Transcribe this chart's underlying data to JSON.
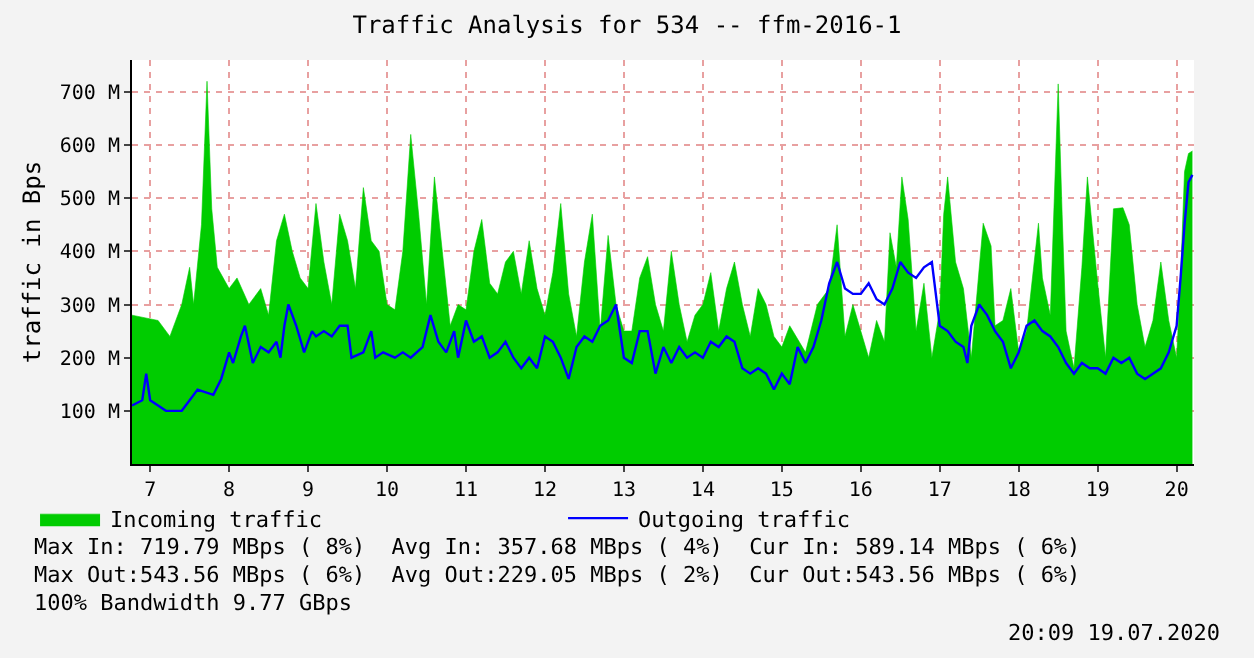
{
  "chart_data": {
    "type": "area",
    "title": "Traffic Analysis for 534 -- ffm-2016-1",
    "ylabel": "traffic in Bps",
    "xlim": [
      6.77,
      20.22
    ],
    "xticks": [
      7,
      8,
      9,
      10,
      11,
      12,
      13,
      14,
      15,
      16,
      17,
      18,
      19,
      20
    ],
    "ylim": [
      0,
      760
    ],
    "yticks": [
      {
        "value": 100,
        "label": "100 M"
      },
      {
        "value": 200,
        "label": "200 M"
      },
      {
        "value": 300,
        "label": "300 M"
      },
      {
        "value": 400,
        "label": "400 M"
      },
      {
        "value": 500,
        "label": "500 M"
      },
      {
        "value": 600,
        "label": "600 M"
      },
      {
        "value": 700,
        "label": "700 M"
      }
    ],
    "grid": true,
    "legend": "bottom left",
    "series": [
      {
        "name": "Incoming traffic",
        "color": "#00cc00",
        "x": [
          6.77,
          7.1,
          7.25,
          7.4,
          7.5,
          7.55,
          7.65,
          7.72,
          7.78,
          7.85,
          8.0,
          8.1,
          8.25,
          8.4,
          8.5,
          8.6,
          8.7,
          8.8,
          8.9,
          9.0,
          9.1,
          9.2,
          9.3,
          9.4,
          9.5,
          9.6,
          9.7,
          9.8,
          9.9,
          10.0,
          10.1,
          10.2,
          10.3,
          10.4,
          10.5,
          10.6,
          10.7,
          10.8,
          10.9,
          11.0,
          11.1,
          11.2,
          11.3,
          11.4,
          11.5,
          11.6,
          11.7,
          11.8,
          11.9,
          12.0,
          12.1,
          12.2,
          12.3,
          12.4,
          12.5,
          12.6,
          12.7,
          12.8,
          12.9,
          13.0,
          13.1,
          13.2,
          13.3,
          13.4,
          13.5,
          13.6,
          13.7,
          13.8,
          13.9,
          14.0,
          14.1,
          14.2,
          14.3,
          14.4,
          14.5,
          14.6,
          14.7,
          14.8,
          14.9,
          15.0,
          15.1,
          15.3,
          15.45,
          15.6,
          15.7,
          15.8,
          15.9,
          16.0,
          16.1,
          16.2,
          16.3,
          16.37,
          16.45,
          16.52,
          16.6,
          16.7,
          16.8,
          16.9,
          17.0,
          17.05,
          17.1,
          17.2,
          17.3,
          17.4,
          17.55,
          17.65,
          17.7,
          17.8,
          17.9,
          18.0,
          18.1,
          18.25,
          18.3,
          18.4,
          18.5,
          18.55,
          18.6,
          18.7,
          18.8,
          18.87,
          19.0,
          19.1,
          19.2,
          19.32,
          19.4,
          19.5,
          19.6,
          19.7,
          19.8,
          19.9,
          20.0,
          20.05,
          20.1,
          20.15,
          20.2
        ],
        "values": [
          280,
          270,
          240,
          300,
          370,
          300,
          450,
          720,
          480,
          370,
          330,
          350,
          300,
          330,
          280,
          420,
          470,
          400,
          350,
          330,
          490,
          380,
          300,
          470,
          420,
          330,
          520,
          420,
          400,
          300,
          290,
          400,
          620,
          470,
          300,
          540,
          400,
          260,
          300,
          290,
          400,
          460,
          340,
          320,
          380,
          400,
          320,
          420,
          330,
          280,
          360,
          490,
          320,
          240,
          380,
          470,
          250,
          430,
          300,
          250,
          250,
          350,
          390,
          300,
          250,
          400,
          300,
          230,
          280,
          300,
          360,
          250,
          330,
          380,
          300,
          240,
          330,
          300,
          240,
          220,
          260,
          210,
          300,
          330,
          450,
          240,
          300,
          250,
          200,
          270,
          230,
          435,
          370,
          540,
          460,
          250,
          340,
          200,
          290,
          470,
          540,
          380,
          330,
          200,
          453,
          410,
          260,
          270,
          330,
          210,
          250,
          453,
          350,
          280,
          715,
          470,
          250,
          180,
          370,
          540,
          340,
          200,
          480,
          482,
          450,
          300,
          220,
          270,
          380,
          270,
          200,
          350,
          550,
          584,
          589
        ]
      },
      {
        "name": "Outgoing traffic",
        "type": "line",
        "color": "#0000ff",
        "x": [
          6.77,
          6.9,
          6.95,
          7.0,
          7.1,
          7.2,
          7.4,
          7.5,
          7.6,
          7.8,
          7.9,
          8.0,
          8.05,
          8.15,
          8.2,
          8.3,
          8.4,
          8.5,
          8.6,
          8.65,
          8.7,
          8.75,
          8.85,
          8.95,
          9.05,
          9.1,
          9.2,
          9.3,
          9.4,
          9.5,
          9.55,
          9.7,
          9.8,
          9.85,
          9.95,
          10.1,
          10.2,
          10.3,
          10.45,
          10.55,
          10.65,
          10.75,
          10.85,
          10.9,
          11.0,
          11.1,
          11.2,
          11.3,
          11.4,
          11.5,
          11.6,
          11.7,
          11.8,
          11.9,
          12.0,
          12.1,
          12.2,
          12.3,
          12.4,
          12.5,
          12.6,
          12.7,
          12.8,
          12.9,
          13.0,
          13.1,
          13.2,
          13.3,
          13.4,
          13.5,
          13.6,
          13.7,
          13.8,
          13.9,
          14.0,
          14.1,
          14.2,
          14.3,
          14.4,
          14.5,
          14.6,
          14.7,
          14.8,
          14.9,
          15.0,
          15.1,
          15.2,
          15.3,
          15.4,
          15.5,
          15.6,
          15.7,
          15.8,
          15.9,
          16.0,
          16.1,
          16.2,
          16.3,
          16.4,
          16.5,
          16.6,
          16.7,
          16.8,
          16.9,
          17.0,
          17.1,
          17.2,
          17.3,
          17.35,
          17.4,
          17.5,
          17.6,
          17.7,
          17.8,
          17.9,
          18.0,
          18.1,
          18.2,
          18.3,
          18.4,
          18.5,
          18.6,
          18.7,
          18.8,
          18.9,
          19.0,
          19.1,
          19.2,
          19.3,
          19.4,
          19.5,
          19.6,
          19.7,
          19.8,
          19.9,
          20.0,
          20.05,
          20.1,
          20.15,
          20.2
        ],
        "values": [
          110,
          120,
          170,
          120,
          110,
          100,
          100,
          120,
          140,
          130,
          160,
          210,
          190,
          240,
          260,
          190,
          220,
          210,
          230,
          200,
          260,
          300,
          260,
          210,
          250,
          240,
          250,
          240,
          260,
          260,
          200,
          210,
          250,
          200,
          210,
          200,
          210,
          200,
          220,
          280,
          230,
          210,
          250,
          200,
          270,
          230,
          240,
          200,
          210,
          230,
          200,
          180,
          200,
          180,
          240,
          230,
          200,
          160,
          220,
          240,
          230,
          260,
          270,
          300,
          200,
          190,
          250,
          250,
          170,
          220,
          190,
          220,
          200,
          210,
          200,
          230,
          220,
          240,
          230,
          180,
          170,
          180,
          170,
          140,
          170,
          150,
          220,
          190,
          220,
          270,
          340,
          380,
          330,
          320,
          320,
          340,
          310,
          300,
          330,
          380,
          360,
          350,
          370,
          380,
          260,
          250,
          230,
          220,
          190,
          260,
          300,
          280,
          250,
          230,
          180,
          210,
          260,
          270,
          250,
          240,
          220,
          190,
          170,
          190,
          180,
          180,
          170,
          200,
          190,
          200,
          170,
          160,
          170,
          180,
          210,
          260,
          350,
          450,
          530,
          544
        ]
      }
    ],
    "annotations": [
      "Max In: 719.79 MBps ( 8%)  Avg In: 357.68 MBps ( 4%)  Cur In: 589.14 MBps ( 6%)",
      "Max Out:543.56 MBps ( 6%)  Avg Out:229.05 MBps ( 2%)  Cur Out:543.56 MBps ( 6%)",
      "100% Bandwidth 9.77 GBps",
      "20:09 19.07.2020"
    ]
  }
}
